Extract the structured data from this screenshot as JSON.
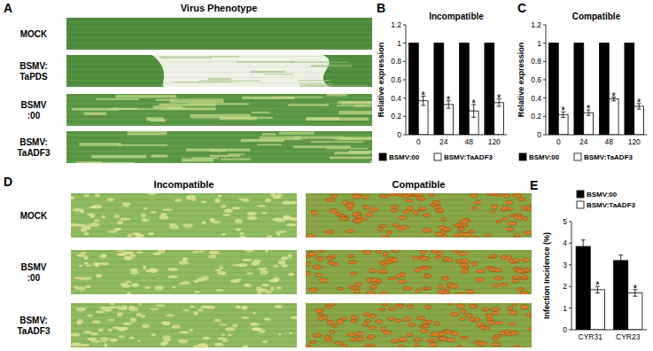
{
  "panels": {
    "A": {
      "letter": "A",
      "title": "Virus Phenotype",
      "rows": [
        [
          "MOCK"
        ],
        [
          "BSMV:",
          "TaPDS"
        ],
        [
          "BSMV",
          ":00"
        ],
        [
          "BSMV:",
          "TaADF3"
        ]
      ]
    },
    "D": {
      "letter": "D",
      "columns": [
        "Incompatible",
        "Compatible"
      ],
      "rows": [
        [
          "MOCK"
        ],
        [
          "BSMV",
          ":00"
        ],
        [
          "BSMV:",
          "TaADF3"
        ]
      ]
    }
  },
  "chart_data": [
    {
      "type": "bar",
      "annotations": [
        "B"
      ],
      "title": "Incompatible",
      "ylabel": "Relative expression",
      "categories": [
        "0",
        "24",
        "48",
        "120"
      ],
      "series": [
        {
          "name": "BSMV:00",
          "color": "#000000",
          "values": [
            1,
            1,
            1,
            1
          ]
        },
        {
          "name": "BSMV:TaADF3",
          "color": "#ffffff",
          "values": [
            0.37,
            0.33,
            0.26,
            0.35
          ],
          "errors": [
            0.05,
            0.04,
            0.07,
            0.04
          ],
          "significance": [
            "*",
            "*",
            "*",
            "*"
          ]
        }
      ],
      "ylim": [
        0,
        1.2
      ],
      "yticks": [
        0,
        0.2,
        0.4,
        0.6,
        0.8,
        1,
        1.2
      ],
      "legend": "bottom"
    },
    {
      "type": "bar",
      "annotations": [
        "C"
      ],
      "title": "Compatible",
      "ylabel": "Relative expression",
      "categories": [
        "0",
        "24",
        "48",
        "120"
      ],
      "series": [
        {
          "name": "BSMV:00",
          "color": "#000000",
          "values": [
            1,
            1,
            1,
            1
          ]
        },
        {
          "name": "BSMV:TaADF3",
          "color": "#ffffff",
          "values": [
            0.22,
            0.24,
            0.39,
            0.31
          ],
          "errors": [
            0.03,
            0.03,
            0.02,
            0.03
          ],
          "significance": [
            "*",
            "*",
            "*",
            "*"
          ]
        }
      ],
      "ylim": [
        0,
        1.2
      ],
      "yticks": [
        0,
        0.2,
        0.4,
        0.6,
        0.8,
        1,
        1.2
      ],
      "legend": "bottom"
    },
    {
      "type": "bar",
      "annotations": [
        "E"
      ],
      "ylabel": "Infection Incidence (%)",
      "categories": [
        "CYR31",
        "CYR23"
      ],
      "series": [
        {
          "name": "BSMV:00",
          "color": "#000000",
          "values": [
            3.85,
            3.2
          ],
          "errors": [
            0.3,
            0.25
          ]
        },
        {
          "name": "BSMV:TaADF3",
          "color": "#ffffff",
          "values": [
            1.85,
            1.7
          ],
          "errors": [
            0.15,
            0.15
          ],
          "significance": [
            "*",
            "*"
          ]
        }
      ],
      "ylim": [
        0,
        5
      ],
      "yticks": [
        0,
        1,
        2,
        3,
        4,
        5
      ],
      "legend": "top"
    }
  ]
}
